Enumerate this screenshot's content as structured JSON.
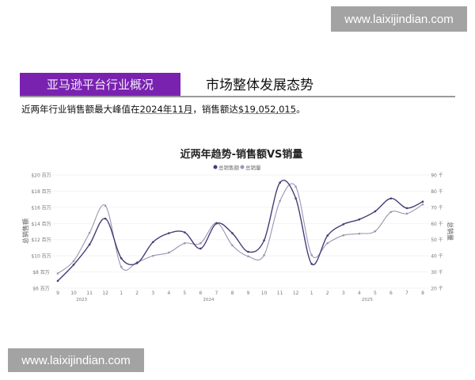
{
  "watermark": {
    "text": "www.laixijindian.com"
  },
  "header": {
    "tag": "亚马逊平台行业概况",
    "title": "市场整体发展态势"
  },
  "summary": {
    "prefix": "近两年行业销售额最大峰值在",
    "period": "2024年11月",
    "middle": "，销售额达",
    "amount": "$19,052,015",
    "suffix": "。"
  },
  "colors": {
    "tag_bg": "#7a22b0",
    "sales": "#4a3b75",
    "quantity": "#9b95b2"
  },
  "chart_data": {
    "type": "line",
    "title": "近两年趋势-销售额VS销量",
    "legend": {
      "position": "top-right",
      "entries": [
        "总销售额",
        "总销量"
      ]
    },
    "x": [
      "9",
      "10",
      "11",
      "12",
      "1",
      "2",
      "3",
      "4",
      "5",
      "6",
      "7",
      "8",
      "9",
      "10",
      "11",
      "12",
      "1",
      "2",
      "3",
      "4",
      "5",
      "6",
      "7",
      "8"
    ],
    "years": [
      {
        "label": "2023",
        "start": 0,
        "end": 3
      },
      {
        "label": "2024",
        "start": 4,
        "end": 15
      },
      {
        "label": "2025",
        "start": 16,
        "end": 23
      }
    ],
    "ylabel_left": "总销售额",
    "ylabel_right": "总销量",
    "ylim_left": [
      6,
      20
    ],
    "ylim_right": [
      20,
      90
    ],
    "yticks_left": [
      "$6 百万",
      "$8 百万",
      "$10 百万",
      "$12 百万",
      "$14 百万",
      "$16 百万",
      "$18 百万",
      "$20 百万"
    ],
    "yticks_right": [
      "20 千",
      "30 千",
      "40 千",
      "50 千",
      "60 千",
      "70 千",
      "80 千",
      "90 千"
    ],
    "grid": true,
    "series": [
      {
        "name": "总销售额",
        "axis": "left",
        "unit": "百万美元",
        "values": [
          6.9,
          8.9,
          11.4,
          14.6,
          9.7,
          9.1,
          11.7,
          12.8,
          12.9,
          10.9,
          14.0,
          12.8,
          10.5,
          11.9,
          19.05,
          17.1,
          9.0,
          12.5,
          13.9,
          14.5,
          15.5,
          17.1,
          15.9,
          16.7
        ]
      },
      {
        "name": "总销量",
        "axis": "right",
        "unit": "千",
        "values": [
          29.1,
          36.8,
          54.2,
          71.0,
          33.2,
          36.0,
          40.0,
          42.0,
          47.8,
          47.8,
          60.4,
          46.5,
          39.7,
          40.4,
          73.9,
          82.7,
          40.5,
          47.8,
          52.7,
          53.7,
          55.2,
          67.1,
          66.1,
          71.8
        ]
      }
    ]
  }
}
